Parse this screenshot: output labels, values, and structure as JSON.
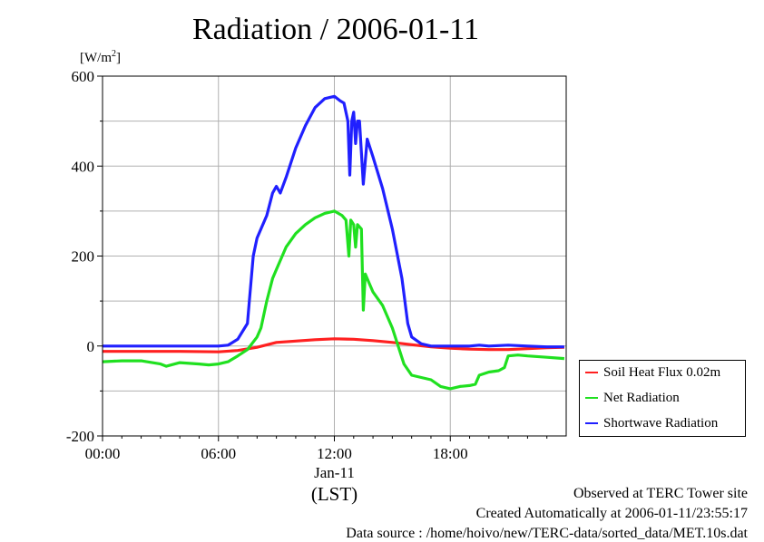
{
  "title": "Radiation / 2006-01-11",
  "unit_label": {
    "base": "[W/m",
    "sup": "2",
    "end": "]"
  },
  "footer": [
    "Observed at TERC Tower site",
    "Created Automatically at 2006-01-11/23:55:17",
    "Data source : /home/hoivo/new/TERC-data/sorted_data/MET.10s.dat"
  ],
  "chart_data": {
    "type": "line",
    "title": "Radiation / 2006-01-11",
    "ylabel": "[W/m2]",
    "xlabel": "(LST)",
    "x_unit": "hour (LST), 2006-01-11",
    "xlim": [
      0,
      24
    ],
    "ylim": [
      -200,
      600
    ],
    "x_ticks": [
      0,
      6,
      12,
      18
    ],
    "x_tick_labels": [
      "00:00",
      "06:00",
      "12:00",
      "18:00"
    ],
    "x_sublabel": "Jan-11",
    "y_ticks": [
      -200,
      0,
      200,
      400,
      600
    ],
    "y_tick_labels": [
      "-200",
      "0",
      "200",
      "400",
      "600"
    ],
    "grid": true,
    "legend_position": "right",
    "series": [
      {
        "name": "Soil Heat Flux 0.02m",
        "color": "#ff2020",
        "points": [
          [
            0,
            -12
          ],
          [
            2,
            -12
          ],
          [
            4,
            -12
          ],
          [
            6,
            -13
          ],
          [
            7,
            -10
          ],
          [
            8,
            -3
          ],
          [
            9,
            8
          ],
          [
            10,
            11
          ],
          [
            11,
            14
          ],
          [
            12,
            16
          ],
          [
            13,
            15
          ],
          [
            14,
            12
          ],
          [
            15,
            8
          ],
          [
            16,
            3
          ],
          [
            17,
            -2
          ],
          [
            18,
            -5
          ],
          [
            19,
            -7
          ],
          [
            20,
            -8
          ],
          [
            21,
            -8
          ],
          [
            22,
            -6
          ],
          [
            23,
            -4
          ],
          [
            23.9,
            -3
          ]
        ]
      },
      {
        "name": "Net Radiation",
        "color": "#20e020",
        "points": [
          [
            0,
            -35
          ],
          [
            1,
            -33
          ],
          [
            2,
            -33
          ],
          [
            3,
            -40
          ],
          [
            3.3,
            -45
          ],
          [
            4,
            -37
          ],
          [
            5,
            -40
          ],
          [
            5.5,
            -42
          ],
          [
            6,
            -40
          ],
          [
            6.5,
            -35
          ],
          [
            7,
            -22
          ],
          [
            7.5,
            -8
          ],
          [
            8,
            20
          ],
          [
            8.2,
            40
          ],
          [
            8.5,
            100
          ],
          [
            8.8,
            150
          ],
          [
            9,
            170
          ],
          [
            9.5,
            220
          ],
          [
            10,
            250
          ],
          [
            10.5,
            270
          ],
          [
            11,
            285
          ],
          [
            11.5,
            295
          ],
          [
            12,
            300
          ],
          [
            12.4,
            290
          ],
          [
            12.6,
            280
          ],
          [
            12.75,
            200
          ],
          [
            12.85,
            280
          ],
          [
            13,
            270
          ],
          [
            13.1,
            220
          ],
          [
            13.2,
            270
          ],
          [
            13.4,
            260
          ],
          [
            13.5,
            80
          ],
          [
            13.6,
            160
          ],
          [
            13.8,
            140
          ],
          [
            14,
            120
          ],
          [
            14.5,
            90
          ],
          [
            15,
            40
          ],
          [
            15.3,
            0
          ],
          [
            15.6,
            -40
          ],
          [
            16,
            -65
          ],
          [
            16.5,
            -70
          ],
          [
            17,
            -75
          ],
          [
            17.5,
            -90
          ],
          [
            18,
            -95
          ],
          [
            18.5,
            -90
          ],
          [
            19,
            -88
          ],
          [
            19.3,
            -85
          ],
          [
            19.5,
            -65
          ],
          [
            20,
            -58
          ],
          [
            20.5,
            -55
          ],
          [
            20.8,
            -48
          ],
          [
            21,
            -22
          ],
          [
            21.5,
            -20
          ],
          [
            22,
            -22
          ],
          [
            23,
            -25
          ],
          [
            23.9,
            -28
          ]
        ]
      },
      {
        "name": "Shortwave Radiation",
        "color": "#2020ff",
        "points": [
          [
            0,
            0
          ],
          [
            2,
            0
          ],
          [
            4,
            0
          ],
          [
            6,
            0
          ],
          [
            6.5,
            2
          ],
          [
            7,
            15
          ],
          [
            7.5,
            50
          ],
          [
            7.6,
            100
          ],
          [
            7.8,
            200
          ],
          [
            8,
            240
          ],
          [
            8.5,
            290
          ],
          [
            8.8,
            340
          ],
          [
            9,
            355
          ],
          [
            9.2,
            340
          ],
          [
            9.5,
            375
          ],
          [
            10,
            440
          ],
          [
            10.5,
            490
          ],
          [
            11,
            530
          ],
          [
            11.5,
            550
          ],
          [
            12,
            555
          ],
          [
            12.3,
            545
          ],
          [
            12.5,
            540
          ],
          [
            12.7,
            500
          ],
          [
            12.8,
            380
          ],
          [
            12.9,
            500
          ],
          [
            13,
            520
          ],
          [
            13.1,
            450
          ],
          [
            13.2,
            500
          ],
          [
            13.3,
            500
          ],
          [
            13.5,
            360
          ],
          [
            13.7,
            460
          ],
          [
            14,
            420
          ],
          [
            14.5,
            350
          ],
          [
            15,
            260
          ],
          [
            15.5,
            150
          ],
          [
            15.8,
            50
          ],
          [
            16,
            20
          ],
          [
            16.5,
            5
          ],
          [
            17,
            0
          ],
          [
            18,
            0
          ],
          [
            19,
            0
          ],
          [
            19.5,
            2
          ],
          [
            20,
            0
          ],
          [
            21,
            2
          ],
          [
            22,
            0
          ],
          [
            23,
            -2
          ],
          [
            23.9,
            -2
          ]
        ]
      }
    ]
  }
}
